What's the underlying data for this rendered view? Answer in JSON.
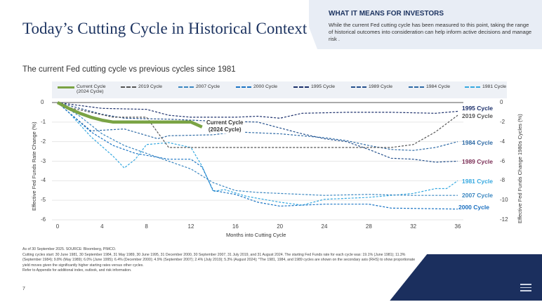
{
  "title": "Today’s Cutting Cycle in Historical Context",
  "panel": {
    "heading": "WHAT IT MEANS FOR INVESTORS",
    "body": "While the current Fed cutting cycle has been measured to this point, taking the range of historical outcomes into consideration can help inform active decisions and manage risk ."
  },
  "subtitle": "The current Fed cutting cycle vs previous cycles since 1981",
  "footer": {
    "source": "As of 30 September 2025. SOURCE: Bloomberg, PIMCO.",
    "note": "Cutting cycles start: 30 June 1981, 30 September 1984, 31 May 1989, 30 June 1995, 31 December 2000, 30 September 2007, 31 July 2019, and 31 August 2024. The starting Fed Funds rate for each cycle was: 19.1% (June 1981); 11.3% (September 1984); 9.8% (May 1989); 6.0% (June 1995); 6.4% (December 2000); 4.9% (September 2007); 2.4% (July 2019); 5.3% (August 2024); *The 1981, 1984, and 1989 cycles are shown on the secondary axis (RHS) to show proportionate yield moves given the significantly higher starting rates versus other cycles.",
    "appendix": "Refer to Appendix for additional index, outlook, and risk information.",
    "page": "7"
  },
  "menu_icon": "hamburger-icon",
  "chart_data": {
    "type": "line",
    "xlabel": "Months into Cutting Cycle",
    "ylabel": "Effective Fed Funds Rate Change (%)",
    "ylabel_right": "Effective Fed Funds Change 1980s Cycles (%)",
    "xlim": [
      0,
      36
    ],
    "ylim": [
      -6,
      0
    ],
    "ylim_right": [
      -12,
      0
    ],
    "xticks": [
      "0",
      "4",
      "8",
      "12",
      "16",
      "20",
      "24",
      "28",
      "32",
      "36"
    ],
    "yticks": [
      "0",
      "-1",
      "-2",
      "-3",
      "-4",
      "-5",
      "-6"
    ],
    "yticks_right": [
      "0",
      "-2",
      "-4",
      "-6",
      "-8",
      "-10",
      "-12"
    ],
    "grid": "horizontal",
    "legend": "top",
    "annotation": [
      "Current Cycle",
      "(2024 Cycle)"
    ],
    "series": [
      {
        "name": "Current Cycle (2024 Cycle)",
        "legend": [
          "Current Cycle",
          "(2024 Cycle)"
        ],
        "axis": "left",
        "color": "#7aa344",
        "style": "solid",
        "label": "",
        "points": [
          [
            0,
            0
          ],
          [
            1,
            -0.3
          ],
          [
            2,
            -0.55
          ],
          [
            3,
            -0.75
          ],
          [
            4,
            -0.9
          ],
          [
            5,
            -1
          ],
          [
            12,
            -1
          ],
          [
            13,
            -1.25
          ]
        ]
      },
      {
        "name": "2019 Cycle",
        "axis": "left",
        "color": "#555555",
        "style": "dash",
        "label": "2019 Cycle",
        "label_color": "#555555",
        "points": [
          [
            0,
            0
          ],
          [
            1,
            -0.25
          ],
          [
            3,
            -0.5
          ],
          [
            5,
            -0.75
          ],
          [
            8,
            -0.75
          ],
          [
            10,
            -2.3
          ],
          [
            20,
            -2.3
          ],
          [
            30,
            -2.3
          ],
          [
            32,
            -2.15
          ],
          [
            34,
            -1.5
          ],
          [
            36,
            -0.65
          ]
        ]
      },
      {
        "name": "2007 Cycle",
        "axis": "left",
        "color": "#3a86c0",
        "style": "dash",
        "label": "2007 Cycle",
        "label_color": "#3a86c0",
        "points": [
          [
            0,
            0
          ],
          [
            2,
            -0.7
          ],
          [
            4,
            -1.6
          ],
          [
            6,
            -2.2
          ],
          [
            8,
            -2.6
          ],
          [
            10,
            -3.0
          ],
          [
            12,
            -3.4
          ],
          [
            14,
            -4.1
          ],
          [
            16,
            -4.5
          ],
          [
            18,
            -4.6
          ],
          [
            20,
            -4.65
          ],
          [
            24,
            -4.75
          ],
          [
            28,
            -4.7
          ],
          [
            32,
            -4.75
          ],
          [
            36,
            -4.75
          ]
        ]
      },
      {
        "name": "2000 Cycle",
        "axis": "left",
        "color": "#1a74c4",
        "style": "dash",
        "label": "2000 Cycle",
        "label_color": "#1a6fc0",
        "points": [
          [
            0,
            0
          ],
          [
            1,
            -0.5
          ],
          [
            3,
            -1.5
          ],
          [
            5,
            -2.2
          ],
          [
            7,
            -2.6
          ],
          [
            10,
            -2.9
          ],
          [
            12,
            -2.9
          ],
          [
            13,
            -3.3
          ],
          [
            14,
            -4.5
          ],
          [
            16,
            -4.7
          ],
          [
            18,
            -5.1
          ],
          [
            20,
            -5.3
          ],
          [
            24,
            -5.2
          ],
          [
            28,
            -5.2
          ],
          [
            30,
            -5.4
          ],
          [
            36,
            -5.45
          ]
        ]
      },
      {
        "name": "1995 Cycle",
        "axis": "left",
        "color": "#1b2f6b",
        "style": "dash",
        "label": "1995 Cycle",
        "label_color": "#1b2f6b",
        "points": [
          [
            0,
            0
          ],
          [
            2,
            -0.15
          ],
          [
            4,
            -0.3
          ],
          [
            8,
            -0.35
          ],
          [
            10,
            -0.65
          ],
          [
            12,
            -0.75
          ],
          [
            16,
            -0.75
          ],
          [
            18,
            -0.7
          ],
          [
            20,
            -0.8
          ],
          [
            22,
            -0.55
          ],
          [
            26,
            -0.5
          ],
          [
            30,
            -0.5
          ],
          [
            34,
            -0.55
          ],
          [
            36,
            -0.45
          ]
        ]
      },
      {
        "name": "1989 Cycle",
        "axis": "right",
        "color": "#24508c",
        "style": "dash",
        "label": "1989 Cycle",
        "label_color": "#7b2d55",
        "points": [
          [
            0,
            0
          ],
          [
            2,
            -0.6
          ],
          [
            4,
            -1.2
          ],
          [
            6,
            -1.6
          ],
          [
            10,
            -1.7
          ],
          [
            14,
            -1.9
          ],
          [
            18,
            -2.0
          ],
          [
            20,
            -2.6
          ],
          [
            22,
            -3.2
          ],
          [
            24,
            -3.7
          ],
          [
            26,
            -4.0
          ],
          [
            28,
            -4.8
          ],
          [
            30,
            -5.7
          ],
          [
            32,
            -5.8
          ],
          [
            34,
            -6.1
          ],
          [
            36,
            -6.0
          ]
        ]
      },
      {
        "name": "1984 Cycle",
        "axis": "right",
        "color": "#2e6aa5",
        "style": "dash",
        "label": "1984 Cycle",
        "label_color": "#2e6aa5",
        "points": [
          [
            0,
            0
          ],
          [
            1,
            -1.0
          ],
          [
            3,
            -2.9
          ],
          [
            6,
            -2.7
          ],
          [
            9,
            -3.7
          ],
          [
            10,
            -3.4
          ],
          [
            14,
            -3.3
          ],
          [
            16,
            -3.0
          ],
          [
            20,
            -3.2
          ],
          [
            24,
            -3.6
          ],
          [
            26,
            -3.9
          ],
          [
            28,
            -4.4
          ],
          [
            30,
            -4.8
          ],
          [
            32,
            -4.9
          ],
          [
            34,
            -4.6
          ],
          [
            36,
            -4.0
          ]
        ]
      },
      {
        "name": "1981 Cycle",
        "axis": "right",
        "color": "#35a8e0",
        "style": "dash",
        "label": "1981 Cycle",
        "label_color": "#35a8e0",
        "points": [
          [
            0,
            0
          ],
          [
            1,
            -1.0
          ],
          [
            3,
            -3.5
          ],
          [
            5,
            -5.5
          ],
          [
            6,
            -6.7
          ],
          [
            7,
            -5.8
          ],
          [
            8,
            -4.3
          ],
          [
            10,
            -4.1
          ],
          [
            12,
            -4.6
          ],
          [
            13,
            -6.5
          ],
          [
            14,
            -9.1
          ],
          [
            15,
            -8.9
          ],
          [
            17,
            -9.6
          ],
          [
            20,
            -10.2
          ],
          [
            22,
            -10.5
          ],
          [
            24,
            -9.9
          ],
          [
            28,
            -9.7
          ],
          [
            32,
            -9.3
          ],
          [
            34,
            -8.8
          ],
          [
            35,
            -8.8
          ],
          [
            36,
            -8.0
          ]
        ]
      }
    ]
  }
}
